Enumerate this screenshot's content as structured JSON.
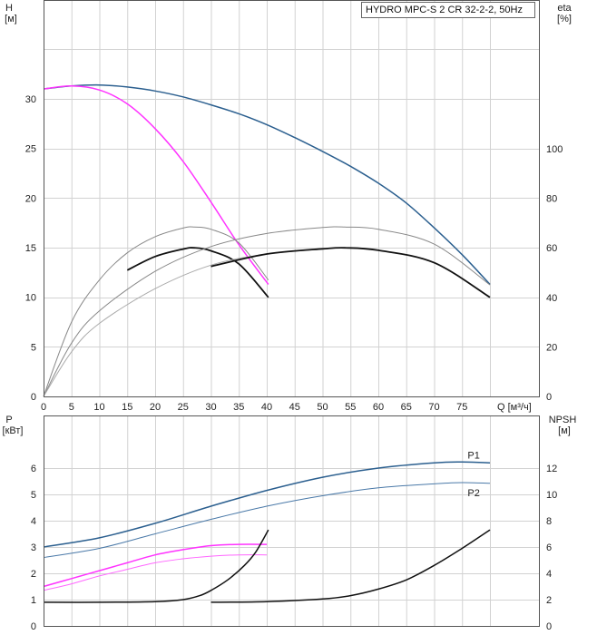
{
  "title": "HYDRO MPC-S 2 CR 32-2-2, 50Hz",
  "chart_data": [
    {
      "type": "line",
      "title": "HYDRO MPC-S 2 CR 32-2-2, 50Hz",
      "xlabel": "Q [м³/ч]",
      "ylabel": "H [м]",
      "ylabel_top": "H",
      "ylabel_unit": "[м]",
      "y2label_top": "eta",
      "y2label_unit": "[%]",
      "xlim": [
        0,
        80
      ],
      "ylim": [
        0,
        35
      ],
      "y2lim": [
        0,
        140
      ],
      "xticks": [
        0,
        5,
        10,
        15,
        20,
        25,
        30,
        35,
        40,
        45,
        50,
        55,
        60,
        65,
        70,
        75
      ],
      "yticks": [
        0,
        5,
        10,
        15,
        20,
        25,
        30
      ],
      "y2ticks": [
        0,
        20,
        40,
        60,
        80,
        100
      ],
      "grid": true,
      "series": [
        {
          "axis": "y",
          "color": "#2b5f8f",
          "width": 1.5,
          "x": [
            0,
            5,
            10,
            15,
            20,
            25,
            30,
            35,
            40,
            45,
            50,
            55,
            60,
            65,
            70,
            75,
            80
          ],
          "values": [
            31.0,
            31.3,
            31.4,
            31.2,
            30.8,
            30.2,
            29.4,
            28.5,
            27.4,
            26.1,
            24.7,
            23.2,
            21.5,
            19.5,
            17.0,
            14.3,
            11.3
          ]
        },
        {
          "axis": "y",
          "color": "#ff33ff",
          "width": 1.5,
          "x": [
            0,
            5,
            10,
            15,
            20,
            25,
            30,
            35,
            40.3
          ],
          "values": [
            31.0,
            31.3,
            30.9,
            29.5,
            27.0,
            23.7,
            19.6,
            15.3,
            11.3
          ]
        },
        {
          "axis": "y2",
          "color": "#111111",
          "width": 1.8,
          "x": [
            15,
            20,
            25,
            27,
            30,
            35,
            40.3
          ],
          "values": [
            51,
            56.5,
            59.5,
            60,
            58.8,
            53.5,
            40
          ]
        },
        {
          "axis": "y2",
          "color": "#888888",
          "width": 1,
          "x": [
            0,
            5,
            10,
            15,
            20,
            25,
            27,
            30,
            35,
            40.3
          ],
          "values": [
            0,
            30,
            47,
            58,
            64.5,
            68,
            68.4,
            67.5,
            62,
            47
          ]
        },
        {
          "axis": "y2",
          "color": "#888888",
          "width": 1,
          "x": [
            0,
            5,
            10,
            20,
            30,
            40,
            50,
            54,
            60,
            70,
            80
          ],
          "values": [
            0,
            21.5,
            34.5,
            50.5,
            60.5,
            65.8,
            68.2,
            68.4,
            67.5,
            61.5,
            45
          ]
        },
        {
          "axis": "y2",
          "color": "#aaaaaa",
          "width": 1,
          "x": [
            0,
            5,
            10,
            20,
            30,
            40,
            50,
            54,
            60,
            70,
            80
          ],
          "values": [
            0,
            18,
            29.5,
            43.5,
            53,
            57.5,
            59.5,
            60,
            59,
            54,
            40
          ]
        },
        {
          "axis": "y2",
          "color": "#111111",
          "width": 1.8,
          "x": [
            30,
            40,
            50,
            54,
            60,
            70,
            80
          ],
          "values": [
            52.5,
            57.5,
            59.6,
            60,
            59,
            54,
            40
          ]
        }
      ]
    },
    {
      "type": "line",
      "ylabel": "P [кВт]",
      "ylabel_top": "P",
      "ylabel_unit": "[кВт]",
      "y2label_top": "NPSH",
      "y2label_unit": "[м]",
      "xlim": [
        0,
        80
      ],
      "ylim": [
        0,
        7
      ],
      "y2lim": [
        0,
        14
      ],
      "yticks": [
        0,
        1,
        2,
        3,
        4,
        5,
        6
      ],
      "y2ticks": [
        0,
        2,
        4,
        6,
        8,
        10,
        12
      ],
      "grid": true,
      "series": [
        {
          "name": "P1",
          "axis": "y",
          "color": "#2b5f8f",
          "width": 1.5,
          "x": [
            0,
            10,
            20,
            30,
            40,
            50,
            60,
            70,
            75,
            80
          ],
          "values": [
            3.0,
            3.35,
            3.9,
            4.55,
            5.15,
            5.65,
            6.0,
            6.2,
            6.23,
            6.2
          ]
        },
        {
          "name": "P2",
          "axis": "y",
          "color": "#4a79a8",
          "width": 1,
          "x": [
            0,
            10,
            20,
            30,
            40,
            50,
            60,
            70,
            75,
            80
          ],
          "values": [
            2.6,
            2.95,
            3.5,
            4.05,
            4.55,
            4.95,
            5.25,
            5.4,
            5.45,
            5.42
          ]
        },
        {
          "axis": "y",
          "color": "#ff33ff",
          "width": 1.5,
          "x": [
            0,
            5,
            10,
            15,
            20,
            25,
            30,
            35,
            40
          ],
          "values": [
            1.5,
            1.8,
            2.1,
            2.4,
            2.7,
            2.9,
            3.05,
            3.1,
            3.1
          ]
        },
        {
          "axis": "y",
          "color": "#ff66ff",
          "width": 1,
          "x": [
            0,
            5,
            10,
            15,
            20,
            25,
            30,
            35,
            40
          ],
          "values": [
            1.35,
            1.6,
            1.9,
            2.15,
            2.4,
            2.55,
            2.65,
            2.7,
            2.7
          ]
        },
        {
          "axis": "y2",
          "color": "#111111",
          "width": 1.5,
          "x": [
            0,
            10,
            20,
            25,
            28,
            30,
            33,
            36,
            38,
            40.3
          ],
          "values": [
            1.8,
            1.8,
            1.85,
            2.0,
            2.3,
            2.7,
            3.5,
            4.6,
            5.6,
            7.3
          ]
        },
        {
          "axis": "y2",
          "color": "#111111",
          "width": 1.5,
          "x": [
            30,
            40,
            50,
            55,
            60,
            65,
            70,
            75,
            80
          ],
          "values": [
            1.8,
            1.85,
            2.05,
            2.3,
            2.8,
            3.5,
            4.6,
            5.9,
            7.3
          ]
        }
      ]
    }
  ]
}
